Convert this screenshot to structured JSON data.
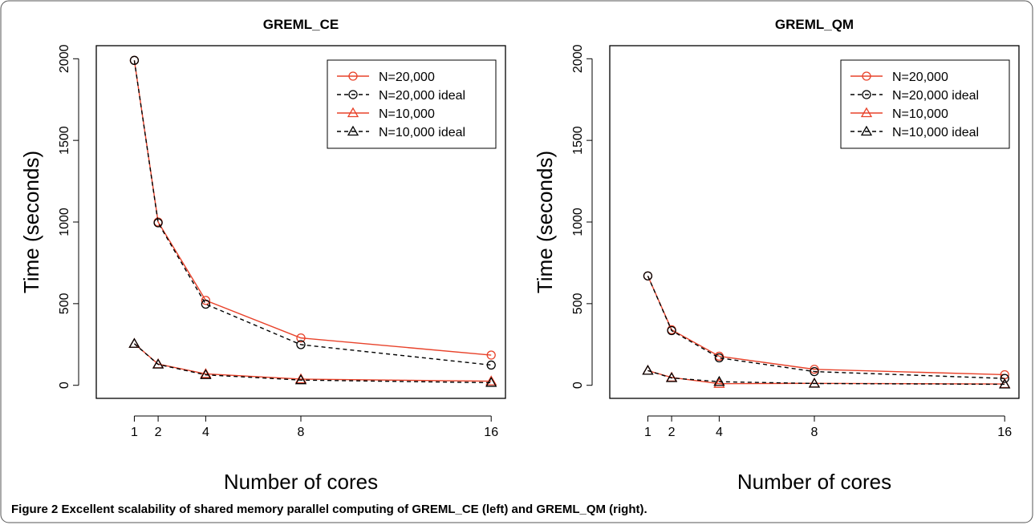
{
  "chart_data": [
    {
      "type": "line",
      "title": "GREML_CE",
      "xlabel": "Number of cores",
      "ylabel": "Time (seconds)",
      "x": [
        1,
        2,
        4,
        8,
        16
      ],
      "xlim": [
        -0.6,
        16.6
      ],
      "xticks": [
        1,
        2,
        4,
        8,
        16
      ],
      "ylim": [
        -80,
        2080
      ],
      "yticks": [
        0,
        500,
        1000,
        1500,
        2000
      ],
      "legend": "upper right",
      "series": [
        {
          "name": "N=20,000",
          "color": "#e8422a",
          "dash": "solid",
          "marker": "circle",
          "values": [
            1990,
            1000,
            520,
            290,
            185
          ]
        },
        {
          "name": "N=20,000 ideal",
          "color": "#000000",
          "dash": "dashed",
          "marker": "circle",
          "values": [
            1990,
            995,
            497,
            249,
            124
          ]
        },
        {
          "name": "N=10,000",
          "color": "#e8422a",
          "dash": "solid",
          "marker": "triangle",
          "values": [
            255,
            130,
            70,
            38,
            25
          ]
        },
        {
          "name": "N=10,000 ideal",
          "color": "#000000",
          "dash": "dashed",
          "marker": "triangle",
          "values": [
            255,
            128,
            64,
            32,
            16
          ]
        }
      ]
    },
    {
      "type": "line",
      "title": "GREML_QM",
      "xlabel": "Number of cores",
      "ylabel": "Time (seconds)",
      "x": [
        1,
        2,
        4,
        8,
        16
      ],
      "xlim": [
        -0.6,
        16.6
      ],
      "xticks": [
        1,
        2,
        4,
        8,
        16
      ],
      "ylim": [
        -80,
        2080
      ],
      "yticks": [
        0,
        500,
        1000,
        1500,
        2000
      ],
      "legend": "upper right",
      "series": [
        {
          "name": "N=20,000",
          "color": "#e8422a",
          "dash": "solid",
          "marker": "circle",
          "values": [
            670,
            340,
            178,
            98,
            65
          ]
        },
        {
          "name": "N=20,000 ideal",
          "color": "#000000",
          "dash": "dashed",
          "marker": "circle",
          "values": [
            670,
            335,
            168,
            84,
            42
          ]
        },
        {
          "name": "N=10,000",
          "color": "#e8422a",
          "dash": "solid",
          "marker": "triangle",
          "values": [
            90,
            48,
            10,
            12,
            8
          ]
        },
        {
          "name": "N=10,000 ideal",
          "color": "#000000",
          "dash": "dashed",
          "marker": "triangle",
          "values": [
            90,
            45,
            22,
            11,
            6
          ]
        }
      ]
    }
  ],
  "caption": {
    "label": "Figure 2",
    "text": "Excellent scalability of shared memory parallel computing of GREML_CE (left) and GREML_QM (right)."
  }
}
